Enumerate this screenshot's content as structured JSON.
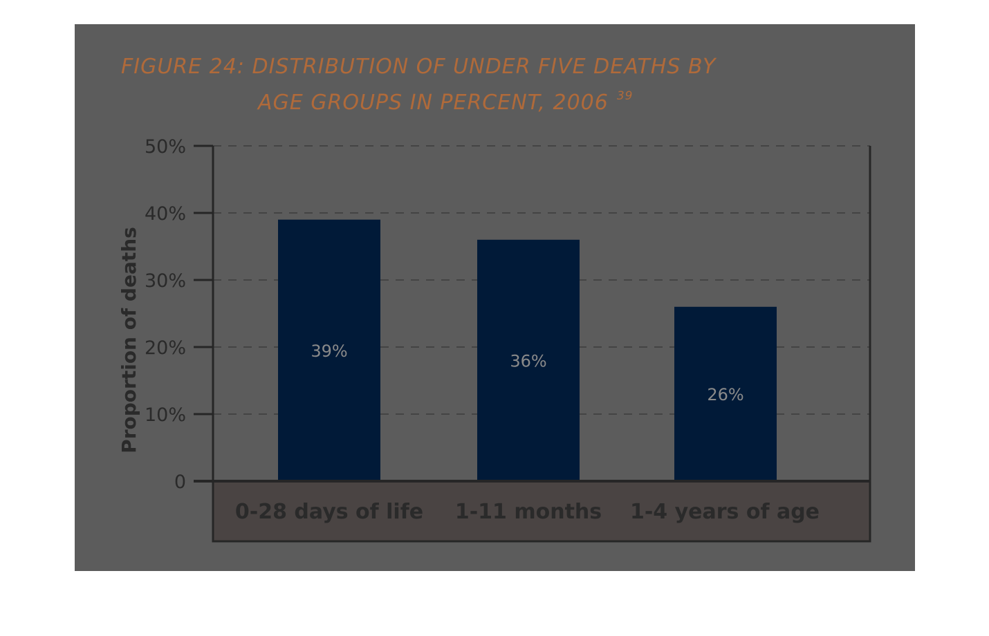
{
  "figure": {
    "title_line1": "FIGURE 24: DISTRIBUTION OF UNDER FIVE DEATHS BY",
    "title_line2": "AGE GROUPS IN PERCENT, 2006",
    "title_superscript": "39"
  },
  "colors": {
    "bar": "#011a38",
    "background": "#5c5c5c",
    "category_band": "#4a4443",
    "title": "#b06a3a",
    "gridline": "#444444",
    "axis": "#262626"
  },
  "chart_data": {
    "type": "bar",
    "title": "FIGURE 24: DISTRIBUTION OF UNDER FIVE DEATHS BY AGE GROUPS IN PERCENT, 2006",
    "ylabel": "Proportion of deaths",
    "xlabel": "",
    "categories": [
      "0-28 days of life",
      "1-11 months",
      "1-4 years of age"
    ],
    "values": [
      39,
      36,
      26
    ],
    "value_labels": [
      "39%",
      "36%",
      "26%"
    ],
    "ylim": [
      0,
      50
    ],
    "yticks": [
      0,
      10,
      20,
      30,
      40,
      50
    ],
    "ytick_labels": [
      "0",
      "10%",
      "20%",
      "30%",
      "40%",
      "50%"
    ],
    "grid": true,
    "legend": "none"
  }
}
